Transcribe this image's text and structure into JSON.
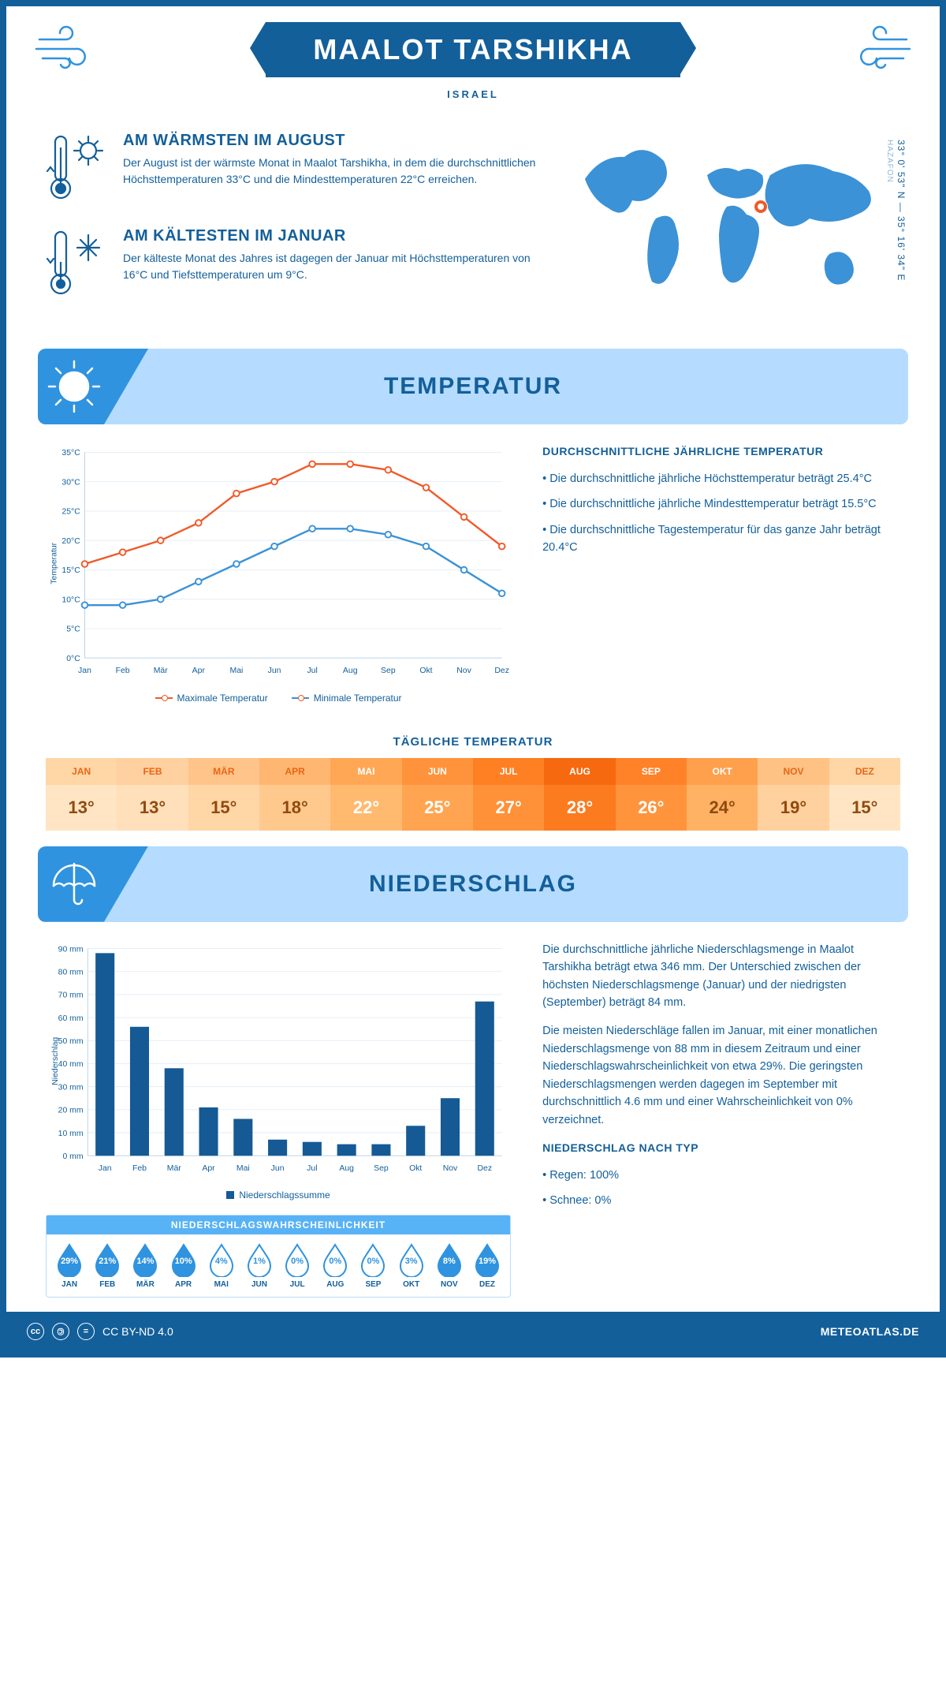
{
  "header": {
    "title": "MAALOT TARSHIKHA",
    "country": "ISRAEL",
    "coords": "33° 0' 53\" N — 35° 16' 34\" E",
    "region": "HAZAFON"
  },
  "colors": {
    "brand": "#135f9a",
    "accent_light": "#b5dcff",
    "accent_blue": "#2f93e0",
    "line_max": "#f05a28",
    "line_min": "#3b92d6",
    "bar_fill": "#155a94"
  },
  "facts": {
    "warmest": {
      "title": "AM WÄRMSTEN IM AUGUST",
      "text": "Der August ist der wärmste Monat in Maalot Tarshikha, in dem die durchschnittlichen Höchsttemperaturen 33°C und die Mindesttemperaturen 22°C erreichen."
    },
    "coldest": {
      "title": "AM KÄLTESTEN IM JANUAR",
      "text": "Der kälteste Monat des Jahres ist dagegen der Januar mit Höchsttemperaturen von 16°C und Tiefsttemperaturen um 9°C."
    }
  },
  "months": [
    "Jan",
    "Feb",
    "Mär",
    "Apr",
    "Mai",
    "Jun",
    "Jul",
    "Aug",
    "Sep",
    "Okt",
    "Nov",
    "Dez"
  ],
  "months_upper": [
    "JAN",
    "FEB",
    "MÄR",
    "APR",
    "MAI",
    "JUN",
    "JUL",
    "AUG",
    "SEP",
    "OKT",
    "NOV",
    "DEZ"
  ],
  "temperature": {
    "section_title": "TEMPERATUR",
    "chart": {
      "type": "line",
      "ylabel": "Temperatur",
      "ylim": [
        0,
        35
      ],
      "ytick_step": 5,
      "max_series": [
        16,
        18,
        20,
        23,
        28,
        30,
        33,
        33,
        32,
        29,
        24,
        19
      ],
      "min_series": [
        9,
        9,
        10,
        13,
        16,
        19,
        22,
        22,
        21,
        19,
        15,
        11
      ],
      "legend_max": "Maximale Temperatur",
      "legend_min": "Minimale Temperatur",
      "grid_color": "#e3eef7",
      "axis_color": "#b9d2e6"
    },
    "summary": {
      "heading": "DURCHSCHNITTLICHE JÄHRLICHE TEMPERATUR",
      "b1": "• Die durchschnittliche jährliche Höchsttemperatur beträgt 25.4°C",
      "b2": "• Die durchschnittliche jährliche Mindesttemperatur beträgt 15.5°C",
      "b3": "• Die durchschnittliche Tagestemperatur für das ganze Jahr beträgt 20.4°C"
    },
    "daily": {
      "heading": "TÄGLICHE TEMPERATUR",
      "values": [
        "13°",
        "13°",
        "15°",
        "18°",
        "22°",
        "25°",
        "27°",
        "28°",
        "26°",
        "24°",
        "19°",
        "15°"
      ],
      "header_colors": [
        "#ffd6a6",
        "#ffd0a0",
        "#ffc48a",
        "#ffb670",
        "#ffa755",
        "#ff933b",
        "#ff7f23",
        "#f6690e",
        "#ff8128",
        "#ffa04d",
        "#ffc285",
        "#ffd6a6"
      ],
      "header_text": [
        "#e96614",
        "#e96614",
        "#e96614",
        "#e96614",
        "#ffffff",
        "#ffffff",
        "#ffffff",
        "#ffffff",
        "#ffffff",
        "#ffffff",
        "#e96614",
        "#e96614"
      ],
      "value_colors": [
        "#ffe5c4",
        "#ffe0ba",
        "#ffd6a6",
        "#ffc98d",
        "#ffba70",
        "#ffa552",
        "#ff9138",
        "#fb7b1e",
        "#ff943c",
        "#ffb263",
        "#ffd19e",
        "#ffe5c4"
      ],
      "value_text": [
        "#904a10",
        "#904a10",
        "#904a10",
        "#904a10",
        "#ffffff",
        "#ffffff",
        "#ffffff",
        "#ffffff",
        "#ffffff",
        "#904a10",
        "#904a10",
        "#904a10"
      ]
    }
  },
  "precipitation": {
    "section_title": "NIEDERSCHLAG",
    "chart": {
      "type": "bar",
      "ylabel": "Niederschlag",
      "ylim": [
        0,
        90
      ],
      "ytick_step": 10,
      "values": [
        88,
        56,
        38,
        21,
        16,
        7,
        6,
        5,
        5,
        13,
        25,
        67
      ],
      "legend": "Niederschlagssumme",
      "bar_color": "#155a94",
      "grid_color": "#e3eef7"
    },
    "text": {
      "p1": "Die durchschnittliche jährliche Niederschlagsmenge in Maalot Tarshikha beträgt etwa 346 mm. Der Unterschied zwischen der höchsten Niederschlagsmenge (Januar) und der niedrigsten (September) beträgt 84 mm.",
      "p2": "Die meisten Niederschläge fallen im Januar, mit einer monatlichen Niederschlagsmenge von 88 mm in diesem Zeitraum und einer Niederschlagswahrscheinlichkeit von etwa 29%. Die geringsten Niederschlagsmengen werden dagegen im September mit durchschnittlich 4.6 mm und einer Wahrscheinlichkeit von 0% verzeichnet.",
      "type_heading": "NIEDERSCHLAG NACH TYP",
      "type_b1": "• Regen: 100%",
      "type_b2": "• Schnee: 0%"
    },
    "probability": {
      "heading": "NIEDERSCHLAGSWAHRSCHEINLICHKEIT",
      "values": [
        29,
        21,
        14,
        10,
        4,
        1,
        0,
        0,
        0,
        3,
        8,
        19
      ],
      "labels": [
        "29%",
        "21%",
        "14%",
        "10%",
        "4%",
        "1%",
        "0%",
        "0%",
        "0%",
        "3%",
        "8%",
        "19%"
      ]
    }
  },
  "footer": {
    "license": "CC BY-ND 4.0",
    "brand": "METEOATLAS.DE"
  }
}
